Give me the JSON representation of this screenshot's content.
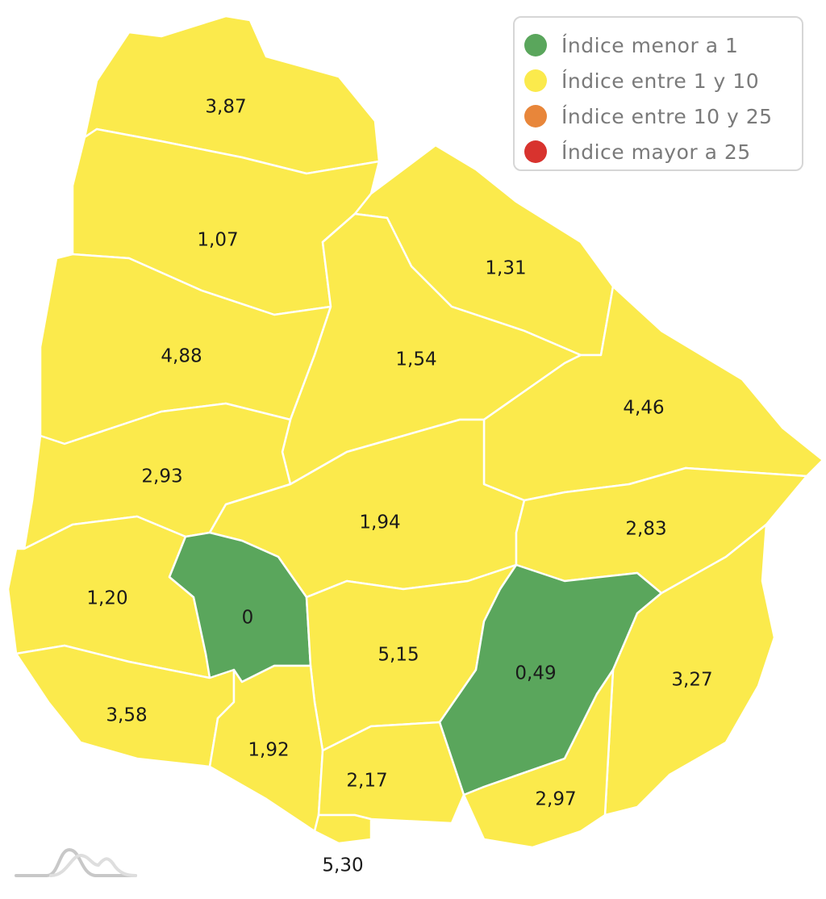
{
  "legend": {
    "items": [
      {
        "label": "Índice menor a 1",
        "color": "#5aa65c"
      },
      {
        "label": "Índice entre 1 y 10",
        "color": "#fbea4c"
      },
      {
        "label": "Índice entre 10 y 25",
        "color": "#e8863a"
      },
      {
        "label": "Índice mayor a 25",
        "color": "#d8332e"
      }
    ]
  },
  "map": {
    "regions": [
      {
        "value": "3,87",
        "category": 1
      },
      {
        "value": "1,07",
        "category": 1
      },
      {
        "value": "1,31",
        "category": 1
      },
      {
        "value": "4,88",
        "category": 1
      },
      {
        "value": "1,54",
        "category": 1
      },
      {
        "value": "4,46",
        "category": 1
      },
      {
        "value": "2,93",
        "category": 1
      },
      {
        "value": "1,94",
        "category": 1
      },
      {
        "value": "2,83",
        "category": 1
      },
      {
        "value": "1,20",
        "category": 1
      },
      {
        "value": "0",
        "category": 0
      },
      {
        "value": "5,15",
        "category": 1
      },
      {
        "value": "0,49",
        "category": 0
      },
      {
        "value": "3,27",
        "category": 1
      },
      {
        "value": "2,97",
        "category": 1
      },
      {
        "value": "3,58",
        "category": 1
      },
      {
        "value": "1,92",
        "category": 1
      },
      {
        "value": "2,17",
        "category": 1
      },
      {
        "value": "5,30",
        "category": 1
      }
    ]
  },
  "logo": {
    "icon": "mountain-waves-logo"
  }
}
